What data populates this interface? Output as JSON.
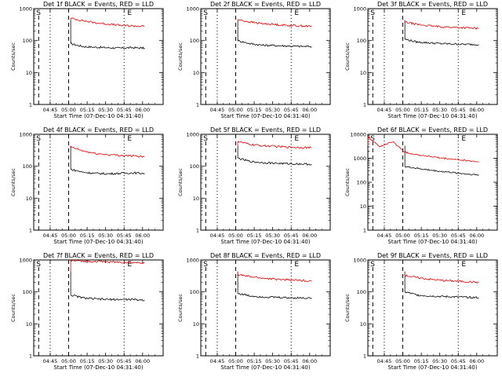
{
  "figure": {
    "x_tick_labels": [
      "04:45",
      "05:00",
      "05:15",
      "05:30",
      "05:45",
      "06:00"
    ],
    "y_tick_labels": [
      "1",
      "10",
      "100",
      "1000"
    ],
    "y_tick_labels_big": [
      "1",
      "10",
      "100",
      "1000",
      "10000"
    ],
    "xlabel": "Start Time (07-Dec-10 04:31:40)",
    "ylabel": "Counts/sec",
    "start_marker": "S",
    "end_marker": "E",
    "series_colors": {
      "events": "#000000",
      "lld": "#e00000"
    }
  },
  "chart_data": [
    {
      "type": "line",
      "title": "Det 1f BLACK = Events, RED = LLD",
      "xlabel": "Start Time (07-Dec-10 04:31:40)",
      "ylabel": "Counts/sec",
      "ylog": true,
      "ylim": [
        1,
        1000
      ],
      "x_unit": "minutes after 04:31:40",
      "x": [
        0,
        10,
        20,
        30,
        40,
        50,
        60,
        70,
        80,
        90
      ],
      "start_time": "04:33",
      "end_time": "05:45",
      "series": [
        {
          "values": [
            null,
            null,
            null,
            80,
            65,
            62,
            60,
            58,
            60,
            58
          ]
        },
        {
          "values": [
            null,
            null,
            null,
            500,
            420,
            360,
            330,
            300,
            290,
            280
          ]
        }
      ]
    },
    {
      "type": "line",
      "title": "Det 2f BLACK = Events, RED = LLD",
      "xlabel": "Start Time (07-Dec-10 04:31:40)",
      "ylabel": "Counts/sec",
      "ylog": true,
      "ylim": [
        1,
        1000
      ],
      "x_unit": "minutes after 04:31:40",
      "x": [
        0,
        10,
        20,
        30,
        40,
        50,
        60,
        70,
        80,
        90
      ],
      "start_time": "04:33",
      "end_time": "05:45",
      "series": [
        {
          "values": [
            null,
            null,
            null,
            100,
            80,
            72,
            70,
            68,
            66,
            65
          ]
        },
        {
          "values": [
            null,
            null,
            null,
            450,
            380,
            340,
            320,
            300,
            290,
            280
          ]
        }
      ]
    },
    {
      "type": "line",
      "title": "Det 3f BLACK = Events, RED = LLD",
      "xlabel": "Start Time (07-Dec-10 04:31:40)",
      "ylabel": "Counts/sec",
      "ylog": true,
      "ylim": [
        1,
        1000
      ],
      "x_unit": "minutes after 04:31:40",
      "x": [
        0,
        10,
        20,
        30,
        40,
        50,
        60,
        70,
        80,
        90
      ],
      "start_time": "04:33",
      "end_time": "05:45",
      "series": [
        {
          "values": [
            null,
            null,
            null,
            110,
            90,
            85,
            80,
            78,
            76,
            75
          ]
        },
        {
          "values": [
            null,
            null,
            null,
            380,
            320,
            290,
            270,
            260,
            250,
            240
          ]
        }
      ]
    },
    {
      "type": "line",
      "title": "Det 4f BLACK = Events, RED = LLD",
      "xlabel": "Start Time (07-Dec-10 04:31:40)",
      "ylabel": "Counts/sec",
      "ylog": true,
      "ylim": [
        1,
        1000
      ],
      "x_unit": "minutes after 04:31:40",
      "x": [
        0,
        10,
        20,
        30,
        40,
        50,
        60,
        70,
        80,
        90
      ],
      "start_time": "04:33",
      "end_time": "05:45",
      "series": [
        {
          "values": [
            null,
            null,
            null,
            80,
            65,
            60,
            58,
            60,
            62,
            60
          ]
        },
        {
          "values": [
            null,
            null,
            null,
            400,
            300,
            250,
            230,
            220,
            210,
            200
          ]
        }
      ]
    },
    {
      "type": "line",
      "title": "Det 5f BLACK = Events, RED = LLD",
      "xlabel": "Start Time (07-Dec-10 04:31:40)",
      "ylabel": "Counts/sec",
      "ylog": true,
      "ylim": [
        1,
        1000
      ],
      "x_unit": "minutes after 04:31:40",
      "x": [
        0,
        10,
        20,
        30,
        40,
        50,
        60,
        70,
        80,
        90
      ],
      "start_time": "04:33",
      "end_time": "05:45",
      "series": [
        {
          "values": [
            null,
            null,
            null,
            180,
            140,
            130,
            125,
            120,
            118,
            115
          ]
        },
        {
          "values": [
            null,
            null,
            null,
            600,
            480,
            440,
            420,
            400,
            390,
            380
          ]
        }
      ]
    },
    {
      "type": "line",
      "title": "Det 6f BLACK = Events, RED = LLD",
      "xlabel": "Start Time (07-Dec-10 04:31:40)",
      "ylabel": "Counts/sec",
      "ylog": true,
      "ylim": [
        1,
        10000
      ],
      "x_unit": "minutes after 04:31:40",
      "x": [
        0,
        10,
        20,
        30,
        40,
        50,
        60,
        70,
        80,
        90
      ],
      "start_time": "04:33",
      "end_time": "05:45",
      "series": [
        {
          "values": [
            null,
            null,
            null,
            450,
            380,
            320,
            280,
            250,
            220,
            200
          ]
        },
        {
          "values": [
            8000,
            3000,
            5000,
            1800,
            1400,
            1200,
            1000,
            900,
            800,
            700
          ]
        }
      ]
    },
    {
      "type": "line",
      "title": "Det 7f BLACK = Events, RED = LLD",
      "xlabel": "Start Time (07-Dec-10 04:31:40)",
      "ylabel": "Counts/sec",
      "ylog": true,
      "ylim": [
        1,
        1000
      ],
      "x_unit": "minutes after 04:31:40",
      "x": [
        0,
        10,
        20,
        30,
        40,
        50,
        60,
        70,
        80,
        90
      ],
      "start_time": "04:33",
      "end_time": "05:45",
      "series": [
        {
          "values": [
            null,
            null,
            null,
            80,
            65,
            60,
            58,
            58,
            58,
            55
          ]
        },
        {
          "values": [
            null,
            null,
            null,
            950,
            920,
            900,
            880,
            850,
            830,
            820
          ]
        }
      ]
    },
    {
      "type": "line",
      "title": "Det 8f BLACK = Events, RED = LLD",
      "xlabel": "Start Time (07-Dec-10 04:31:40)",
      "ylabel": "Counts/sec",
      "ylog": true,
      "ylim": [
        1,
        1000
      ],
      "x_unit": "minutes after 04:31:40",
      "x": [
        0,
        10,
        20,
        30,
        40,
        50,
        60,
        70,
        80,
        90
      ],
      "start_time": "04:33",
      "end_time": "05:45",
      "series": [
        {
          "values": [
            null,
            null,
            null,
            90,
            75,
            70,
            68,
            66,
            65,
            64
          ]
        },
        {
          "values": [
            null,
            null,
            null,
            350,
            300,
            270,
            250,
            240,
            230,
            220
          ]
        }
      ]
    },
    {
      "type": "line",
      "title": "Det 9f BLACK = Events, RED = LLD",
      "xlabel": "Start Time (07-Dec-10 04:31:40)",
      "ylabel": "Counts/sec",
      "ylog": true,
      "ylim": [
        1,
        1000
      ],
      "x_unit": "minutes after 04:31:40",
      "x": [
        0,
        10,
        20,
        30,
        40,
        50,
        60,
        70,
        80,
        90
      ],
      "start_time": "04:33",
      "end_time": "05:45",
      "series": [
        {
          "values": [
            null,
            null,
            null,
            100,
            80,
            75,
            72,
            70,
            68,
            66
          ]
        },
        {
          "values": [
            null,
            null,
            null,
            330,
            280,
            250,
            230,
            220,
            210,
            200
          ]
        }
      ]
    }
  ]
}
